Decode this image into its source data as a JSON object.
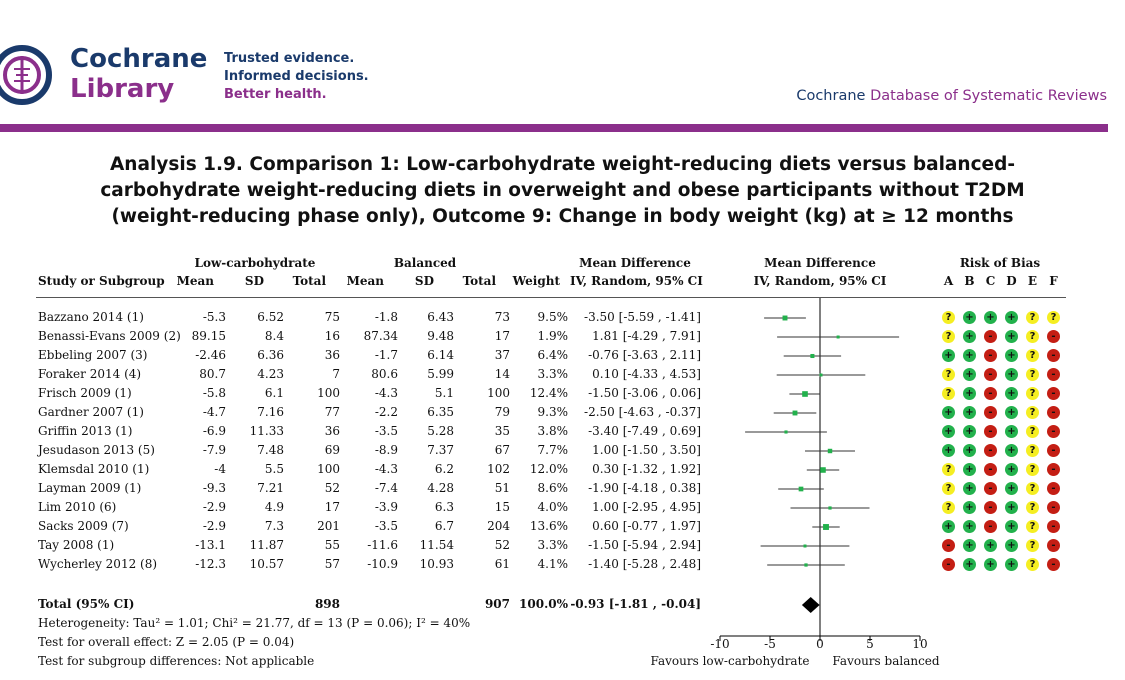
{
  "header": {
    "brand_line1": "Cochrane",
    "brand_line2": "Library",
    "tagline1": "Trusted evidence.",
    "tagline2": "Informed decisions.",
    "tagline3": "Better health.",
    "db_prefix": "Cochrane ",
    "db_highlight": "Database of Systematic Reviews"
  },
  "analysis": {
    "title_line1": "Analysis 1.9.   Comparison 1: Low-carbohydrate weight-reducing diets versus balanced-",
    "title_line2": "carbohydrate weight-reducing diets in overweight and obese participants without T2DM",
    "title_line3": "(weight-reducing phase only), Outcome 9: Change in body weight (kg) at ≥ 12 months"
  },
  "table": {
    "group1": "Low-carbohydrate",
    "group2": "Balanced",
    "md_header": "Mean Difference",
    "md_method": "IV, Random, 95% CI",
    "plot_header": "Mean Difference",
    "plot_method": "IV, Random, 95% CI",
    "rob_header": "Risk of Bias",
    "rob_letters": [
      "A",
      "B",
      "C",
      "D",
      "E",
      "F"
    ],
    "col_study": "Study or Subgroup",
    "col_mean1": "Mean",
    "col_sd1": "SD",
    "col_total1": "Total",
    "col_mean2": "Mean",
    "col_sd2": "SD",
    "col_total2": "Total",
    "col_weight": "Weight",
    "studies": [
      {
        "name": "Bazzano 2014 (1)",
        "m1": "-5.3",
        "sd1": "6.52",
        "n1": "75",
        "m2": "-1.8",
        "sd2": "6.43",
        "n2": "73",
        "w": "9.5%",
        "ci": "-3.50 [-5.59 , -1.41]",
        "md": -3.5,
        "lo": -5.59,
        "hi": -1.41,
        "wt": 9.5,
        "rob": [
          "?",
          "+",
          "+",
          "+",
          "?",
          "?"
        ]
      },
      {
        "name": "Benassi-Evans 2009 (2)",
        "m1": "89.15",
        "sd1": "8.4",
        "n1": "16",
        "m2": "87.34",
        "sd2": "9.48",
        "n2": "17",
        "w": "1.9%",
        "ci": "1.81 [-4.29 , 7.91]",
        "md": 1.81,
        "lo": -4.29,
        "hi": 7.91,
        "wt": 1.9,
        "rob": [
          "?",
          "+",
          "-",
          "+",
          "?",
          "-"
        ]
      },
      {
        "name": "Ebbeling 2007 (3)",
        "m1": "-2.46",
        "sd1": "6.36",
        "n1": "36",
        "m2": "-1.7",
        "sd2": "6.14",
        "n2": "37",
        "w": "6.4%",
        "ci": "-0.76 [-3.63 , 2.11]",
        "md": -0.76,
        "lo": -3.63,
        "hi": 2.11,
        "wt": 6.4,
        "rob": [
          "+",
          "+",
          "-",
          "+",
          "?",
          "-"
        ]
      },
      {
        "name": "Foraker 2014 (4)",
        "m1": "80.7",
        "sd1": "4.23",
        "n1": "7",
        "m2": "80.6",
        "sd2": "5.99",
        "n2": "14",
        "w": "3.3%",
        "ci": "0.10 [-4.33 , 4.53]",
        "md": 0.1,
        "lo": -4.33,
        "hi": 4.53,
        "wt": 3.3,
        "rob": [
          "?",
          "+",
          "-",
          "+",
          "?",
          "-"
        ]
      },
      {
        "name": "Frisch 2009 (1)",
        "m1": "-5.8",
        "sd1": "6.1",
        "n1": "100",
        "m2": "-4.3",
        "sd2": "5.1",
        "n2": "100",
        "w": "12.4%",
        "ci": "-1.50 [-3.06 , 0.06]",
        "md": -1.5,
        "lo": -3.06,
        "hi": 0.06,
        "wt": 12.4,
        "rob": [
          "?",
          "+",
          "-",
          "+",
          "?",
          "-"
        ]
      },
      {
        "name": "Gardner 2007 (1)",
        "m1": "-4.7",
        "sd1": "7.16",
        "n1": "77",
        "m2": "-2.2",
        "sd2": "6.35",
        "n2": "79",
        "w": "9.3%",
        "ci": "-2.50 [-4.63 , -0.37]",
        "md": -2.5,
        "lo": -4.63,
        "hi": -0.37,
        "wt": 9.3,
        "rob": [
          "+",
          "+",
          "-",
          "+",
          "?",
          "-"
        ]
      },
      {
        "name": "Griffin 2013 (1)",
        "m1": "-6.9",
        "sd1": "11.33",
        "n1": "36",
        "m2": "-3.5",
        "sd2": "5.28",
        "n2": "35",
        "w": "3.8%",
        "ci": "-3.40 [-7.49 , 0.69]",
        "md": -3.4,
        "lo": -7.49,
        "hi": 0.69,
        "wt": 3.8,
        "rob": [
          "+",
          "+",
          "-",
          "+",
          "?",
          "-"
        ]
      },
      {
        "name": "Jesudason 2013 (5)",
        "m1": "-7.9",
        "sd1": "7.48",
        "n1": "69",
        "m2": "-8.9",
        "sd2": "7.37",
        "n2": "67",
        "w": "7.7%",
        "ci": "1.00 [-1.50 , 3.50]",
        "md": 1.0,
        "lo": -1.5,
        "hi": 3.5,
        "wt": 7.7,
        "rob": [
          "+",
          "+",
          "-",
          "+",
          "?",
          "-"
        ]
      },
      {
        "name": "Klemsdal 2010 (1)",
        "m1": "-4",
        "sd1": "5.5",
        "n1": "100",
        "m2": "-4.3",
        "sd2": "6.2",
        "n2": "102",
        "w": "12.0%",
        "ci": "0.30 [-1.32 , 1.92]",
        "md": 0.3,
        "lo": -1.32,
        "hi": 1.92,
        "wt": 12.0,
        "rob": [
          "?",
          "+",
          "-",
          "+",
          "?",
          "-"
        ]
      },
      {
        "name": "Layman 2009 (1)",
        "m1": "-9.3",
        "sd1": "7.21",
        "n1": "52",
        "m2": "-7.4",
        "sd2": "4.28",
        "n2": "51",
        "w": "8.6%",
        "ci": "-1.90 [-4.18 , 0.38]",
        "md": -1.9,
        "lo": -4.18,
        "hi": 0.38,
        "wt": 8.6,
        "rob": [
          "?",
          "+",
          "-",
          "+",
          "?",
          "-"
        ]
      },
      {
        "name": "Lim 2010 (6)",
        "m1": "-2.9",
        "sd1": "4.9",
        "n1": "17",
        "m2": "-3.9",
        "sd2": "6.3",
        "n2": "15",
        "w": "4.0%",
        "ci": "1.00 [-2.95 , 4.95]",
        "md": 1.0,
        "lo": -2.95,
        "hi": 4.95,
        "wt": 4.0,
        "rob": [
          "?",
          "+",
          "-",
          "+",
          "?",
          "-"
        ]
      },
      {
        "name": "Sacks 2009 (7)",
        "m1": "-2.9",
        "sd1": "7.3",
        "n1": "201",
        "m2": "-3.5",
        "sd2": "6.7",
        "n2": "204",
        "w": "13.6%",
        "ci": "0.60 [-0.77 , 1.97]",
        "md": 0.6,
        "lo": -0.77,
        "hi": 1.97,
        "wt": 13.6,
        "rob": [
          "+",
          "+",
          "-",
          "+",
          "?",
          "-"
        ]
      },
      {
        "name": "Tay 2008 (1)",
        "m1": "-13.1",
        "sd1": "11.87",
        "n1": "55",
        "m2": "-11.6",
        "sd2": "11.54",
        "n2": "52",
        "w": "3.3%",
        "ci": "-1.50 [-5.94 , 2.94]",
        "md": -1.5,
        "lo": -5.94,
        "hi": 2.94,
        "wt": 3.3,
        "rob": [
          "-",
          "+",
          "+",
          "+",
          "?",
          "-"
        ]
      },
      {
        "name": "Wycherley 2012 (8)",
        "m1": "-12.3",
        "sd1": "10.57",
        "n1": "57",
        "m2": "-10.9",
        "sd2": "10.93",
        "n2": "61",
        "w": "4.1%",
        "ci": "-1.40 [-5.28 , 2.48]",
        "md": -1.4,
        "lo": -5.28,
        "hi": 2.48,
        "wt": 4.1,
        "rob": [
          "-",
          "+",
          "+",
          "+",
          "?",
          "-"
        ]
      }
    ],
    "total": {
      "label": "Total (95% CI)",
      "n1": "898",
      "n2": "907",
      "w": "100.0%",
      "ci": "-0.93 [-1.81 , -0.04]",
      "md": -0.93,
      "lo": -1.81,
      "hi": -0.04
    },
    "heterogeneity": "Heterogeneity: Tau² = 1.01; Chi² = 21.77, df = 13 (P = 0.06); I² = 40%",
    "overall_effect": "Test for overall effect: Z = 2.05 (P = 0.04)",
    "subgroup_diff": "Test for subgroup differences: Not applicable",
    "axis": {
      "ticks": [
        -10,
        -5,
        0,
        5,
        10
      ],
      "tick_labels": [
        "-10",
        "-5",
        "0",
        "5",
        "10"
      ],
      "favours_left": "Favours low-carbohydrate",
      "favours_right": "Favours balanced"
    }
  },
  "colors": {
    "brand_blue": "#1a3a6b",
    "brand_purple": "#8b2f8b",
    "point_green": "#22b14c",
    "rob_green": "#22b14c",
    "rob_yellow": "#f5ee22",
    "rob_red": "#c41e14"
  }
}
